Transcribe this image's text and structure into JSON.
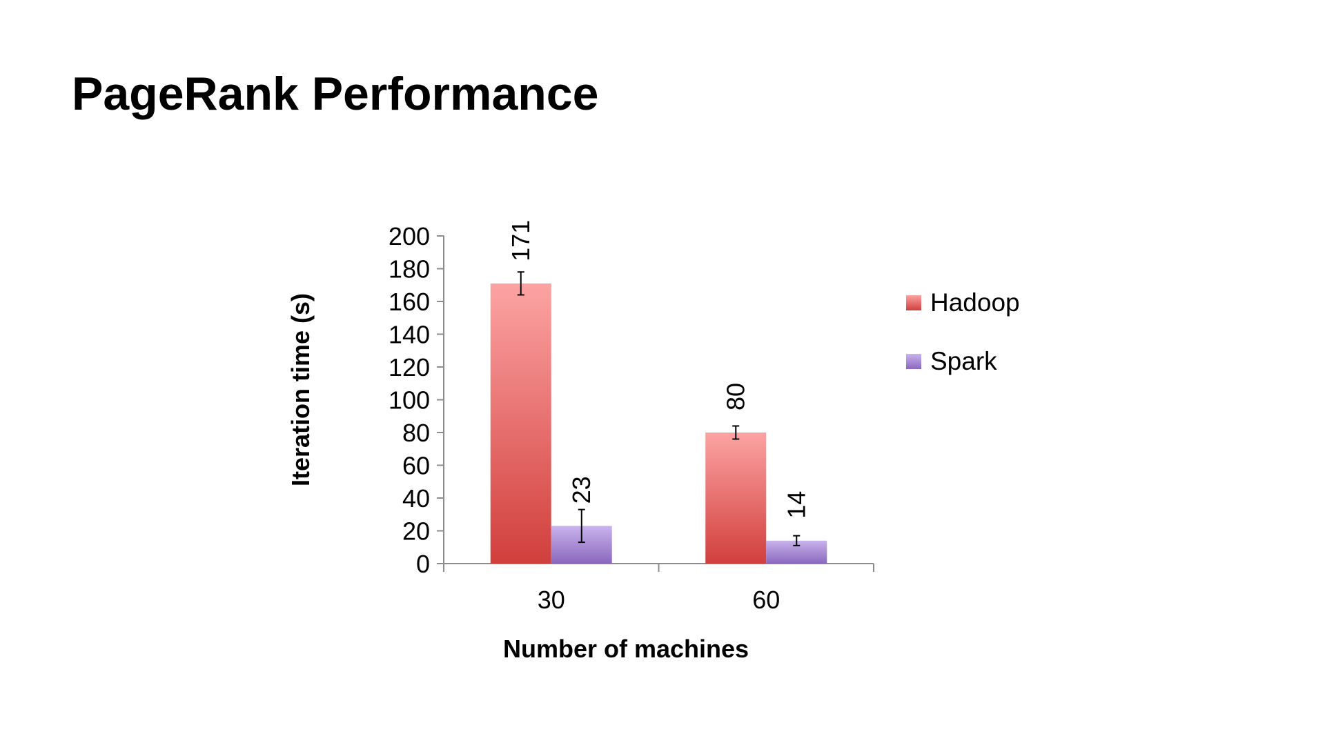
{
  "slide": {
    "title": "PageRank Performance"
  },
  "colors": {
    "hadoop_top": "#fca3a3",
    "hadoop_bottom": "#d13f3c",
    "spark_top": "#c9b3ec",
    "spark_bottom": "#8a67be",
    "axis": "#8c8c8c",
    "error_bar": "#000000"
  },
  "chart_data": {
    "type": "bar",
    "categories": [
      "30",
      "60"
    ],
    "series": [
      {
        "name": "Hadoop",
        "values": [
          171,
          80
        ],
        "error": [
          7,
          4
        ],
        "labels": [
          "171",
          "80"
        ]
      },
      {
        "name": "Spark",
        "values": [
          23,
          14
        ],
        "error": [
          10,
          3
        ],
        "labels": [
          "23",
          "14"
        ]
      }
    ],
    "xlabel": "Number of machines",
    "ylabel": "Iteration time (s)",
    "ylim": [
      0,
      200
    ],
    "yticks": [
      "0",
      "20",
      "40",
      "60",
      "80",
      "100",
      "120",
      "140",
      "160",
      "180",
      "200"
    ],
    "grid": false,
    "legend": "right",
    "data_labels_rotated": true
  }
}
